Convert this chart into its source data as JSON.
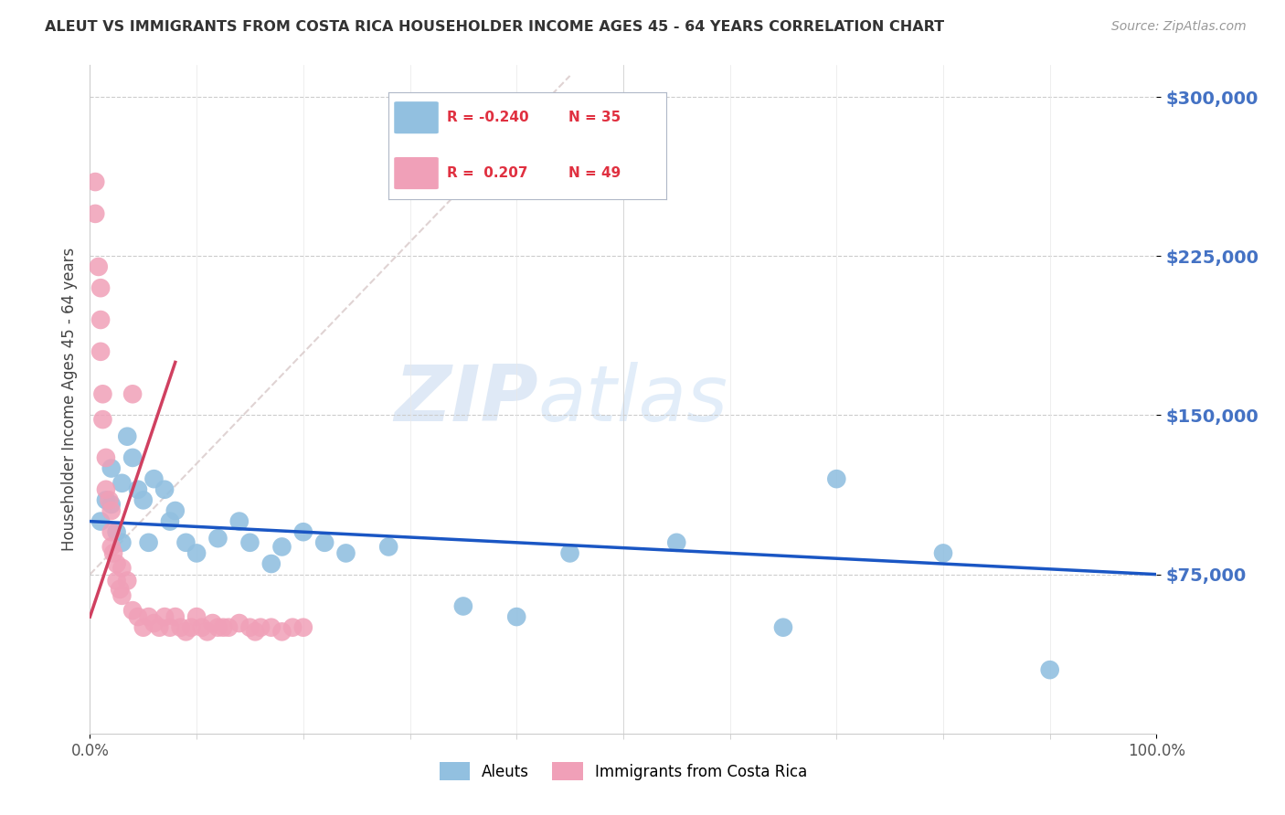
{
  "title": "ALEUT VS IMMIGRANTS FROM COSTA RICA HOUSEHOLDER INCOME AGES 45 - 64 YEARS CORRELATION CHART",
  "source": "Source: ZipAtlas.com",
  "ylabel": "Householder Income Ages 45 - 64 years",
  "ytick_vals": [
    75000,
    150000,
    225000,
    300000
  ],
  "ytick_labels": [
    "$75,000",
    "$150,000",
    "$225,000",
    "$300,000"
  ],
  "ytick_color": "#4472c4",
  "background_color": "#ffffff",
  "watermark_zip": "ZIP",
  "watermark_atlas": "atlas",
  "legend_R_blue": "-0.240",
  "legend_N_blue": "35",
  "legend_R_pink": " 0.207",
  "legend_N_pink": "49",
  "legend_label_blue": "Aleuts",
  "legend_label_pink": "Immigrants from Costa Rica",
  "blue_color": "#92c0e0",
  "pink_color": "#f0a0b8",
  "blue_line_color": "#1a56c4",
  "pink_line_color": "#d04060",
  "diag_line_color": "#d8c8c8",
  "aleuts_x": [
    1.0,
    1.5,
    2.0,
    2.0,
    2.5,
    3.0,
    3.0,
    3.5,
    4.0,
    4.5,
    5.0,
    5.5,
    6.0,
    7.0,
    7.5,
    8.0,
    9.0,
    10.0,
    12.0,
    14.0,
    15.0,
    17.0,
    18.0,
    20.0,
    22.0,
    24.0,
    28.0,
    35.0,
    40.0,
    45.0,
    55.0,
    65.0,
    70.0,
    80.0,
    90.0
  ],
  "aleuts_y": [
    100000,
    110000,
    125000,
    108000,
    95000,
    90000,
    118000,
    140000,
    130000,
    115000,
    110000,
    90000,
    120000,
    115000,
    100000,
    105000,
    90000,
    85000,
    92000,
    100000,
    90000,
    80000,
    88000,
    95000,
    90000,
    85000,
    88000,
    60000,
    55000,
    85000,
    90000,
    50000,
    120000,
    85000,
    30000
  ],
  "costa_rica_x": [
    0.5,
    0.5,
    0.8,
    1.0,
    1.0,
    1.0,
    1.2,
    1.2,
    1.5,
    1.5,
    1.8,
    2.0,
    2.0,
    2.0,
    2.2,
    2.5,
    2.5,
    2.8,
    3.0,
    3.0,
    3.5,
    4.0,
    4.0,
    4.5,
    5.0,
    5.5,
    6.0,
    6.5,
    7.0,
    7.5,
    8.0,
    8.5,
    9.0,
    9.5,
    10.0,
    10.5,
    11.0,
    11.5,
    12.0,
    12.5,
    13.0,
    14.0,
    15.0,
    15.5,
    16.0,
    17.0,
    18.0,
    19.0,
    20.0
  ],
  "costa_rica_y": [
    260000,
    245000,
    220000,
    210000,
    195000,
    180000,
    160000,
    148000,
    130000,
    115000,
    110000,
    105000,
    95000,
    88000,
    85000,
    80000,
    72000,
    68000,
    78000,
    65000,
    72000,
    160000,
    58000,
    55000,
    50000,
    55000,
    52000,
    50000,
    55000,
    50000,
    55000,
    50000,
    48000,
    50000,
    55000,
    50000,
    48000,
    52000,
    50000,
    50000,
    50000,
    52000,
    50000,
    48000,
    50000,
    50000,
    48000,
    50000,
    50000
  ]
}
